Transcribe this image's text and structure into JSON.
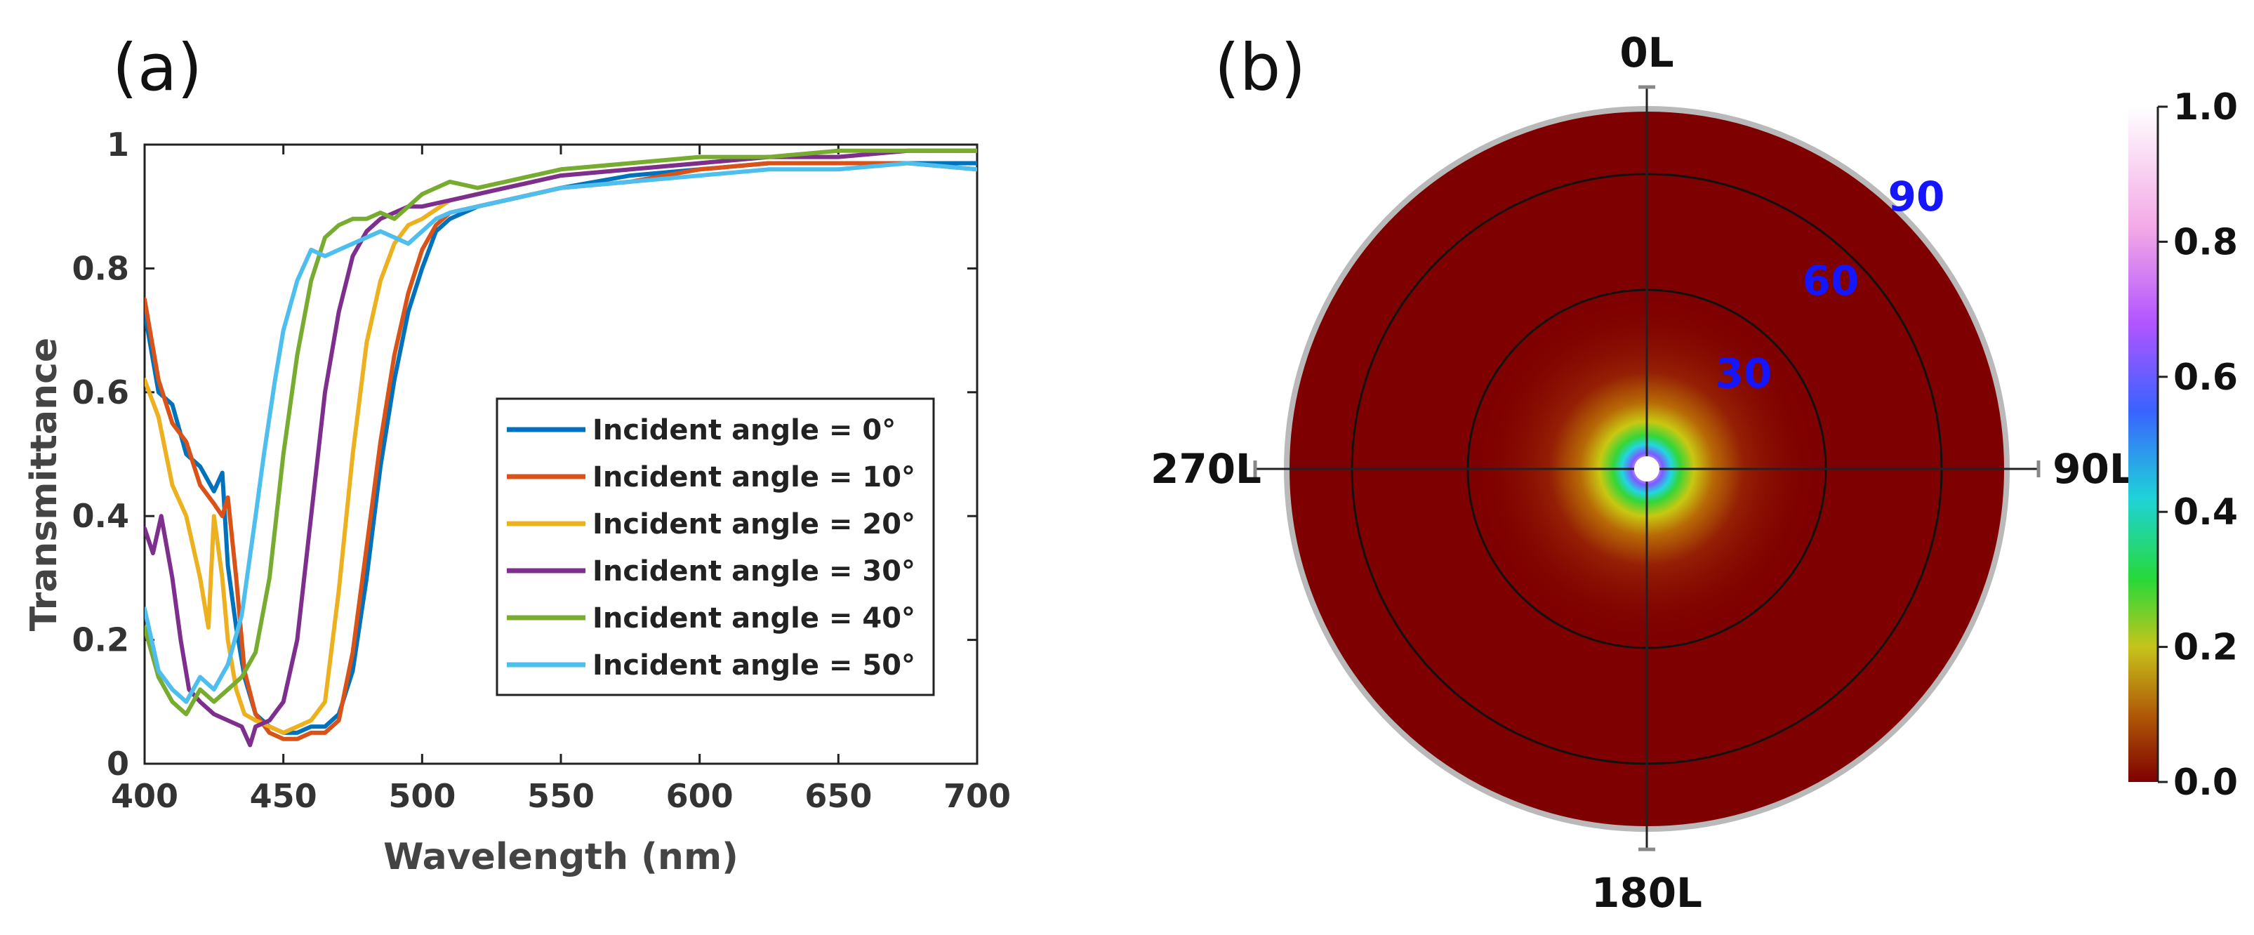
{
  "chart_data": [
    {
      "panel": "(a)",
      "type": "line",
      "xlabel": "Wavelength (nm)",
      "ylabel": "Transmittance",
      "xlim": [
        400,
        700
      ],
      "ylim": [
        0,
        1
      ],
      "xticks": [
        "400",
        "450",
        "500",
        "550",
        "600",
        "650",
        "700"
      ],
      "yticks": [
        "0",
        "0.2",
        "0.4",
        "0.6",
        "0.8",
        "1"
      ],
      "legend_position": "center-right",
      "series": [
        {
          "name": "Incident angle = 0°",
          "color": "#0072BD",
          "x": [
            400,
            405,
            410,
            415,
            420,
            425,
            428,
            430,
            433,
            436,
            440,
            445,
            450,
            455,
            460,
            465,
            470,
            475,
            480,
            485,
            490,
            495,
            500,
            505,
            510,
            520,
            530,
            540,
            550,
            575,
            600,
            625,
            650,
            675,
            700
          ],
          "y": [
            0.73,
            0.6,
            0.58,
            0.5,
            0.48,
            0.44,
            0.47,
            0.32,
            0.22,
            0.14,
            0.08,
            0.06,
            0.05,
            0.05,
            0.06,
            0.06,
            0.08,
            0.15,
            0.3,
            0.48,
            0.62,
            0.73,
            0.8,
            0.86,
            0.88,
            0.9,
            0.91,
            0.92,
            0.93,
            0.95,
            0.96,
            0.97,
            0.97,
            0.97,
            0.97
          ]
        },
        {
          "name": "Incident angle = 10°",
          "color": "#D95319",
          "x": [
            400,
            405,
            410,
            415,
            420,
            425,
            428,
            430,
            433,
            436,
            440,
            445,
            450,
            455,
            460,
            465,
            470,
            475,
            480,
            485,
            490,
            495,
            500,
            505,
            510,
            520,
            530,
            540,
            550,
            575,
            600,
            625,
            650,
            675,
            700
          ],
          "y": [
            0.75,
            0.62,
            0.55,
            0.52,
            0.45,
            0.42,
            0.4,
            0.43,
            0.3,
            0.15,
            0.08,
            0.05,
            0.04,
            0.04,
            0.05,
            0.05,
            0.07,
            0.18,
            0.35,
            0.52,
            0.66,
            0.76,
            0.83,
            0.87,
            0.89,
            0.9,
            0.91,
            0.92,
            0.93,
            0.94,
            0.96,
            0.97,
            0.97,
            0.97,
            0.96
          ]
        },
        {
          "name": "Incident angle = 20°",
          "color": "#EDB120",
          "x": [
            400,
            405,
            410,
            415,
            420,
            423,
            425,
            428,
            430,
            433,
            436,
            440,
            445,
            450,
            455,
            460,
            465,
            470,
            475,
            480,
            485,
            490,
            495,
            500,
            510,
            520,
            530,
            540,
            550,
            575,
            600,
            625,
            650,
            675,
            700
          ],
          "y": [
            0.62,
            0.56,
            0.45,
            0.4,
            0.3,
            0.22,
            0.4,
            0.3,
            0.2,
            0.12,
            0.08,
            0.07,
            0.06,
            0.05,
            0.06,
            0.07,
            0.1,
            0.28,
            0.5,
            0.68,
            0.78,
            0.84,
            0.87,
            0.88,
            0.91,
            0.92,
            0.93,
            0.94,
            0.95,
            0.96,
            0.97,
            0.98,
            0.98,
            0.99,
            0.99
          ]
        },
        {
          "name": "Incident angle = 30°",
          "color": "#7E2F8E",
          "x": [
            400,
            403,
            406,
            410,
            413,
            416,
            420,
            425,
            430,
            435,
            438,
            440,
            445,
            450,
            455,
            460,
            465,
            470,
            475,
            480,
            485,
            490,
            495,
            500,
            510,
            520,
            530,
            540,
            550,
            575,
            600,
            625,
            650,
            675,
            700
          ],
          "y": [
            0.38,
            0.34,
            0.4,
            0.3,
            0.2,
            0.12,
            0.1,
            0.08,
            0.07,
            0.06,
            0.03,
            0.06,
            0.07,
            0.1,
            0.2,
            0.4,
            0.6,
            0.73,
            0.82,
            0.86,
            0.88,
            0.89,
            0.9,
            0.9,
            0.91,
            0.92,
            0.93,
            0.94,
            0.95,
            0.96,
            0.97,
            0.98,
            0.98,
            0.99,
            0.99
          ]
        },
        {
          "name": "Incident angle = 40°",
          "color": "#77AC30",
          "x": [
            400,
            405,
            410,
            415,
            420,
            425,
            430,
            435,
            440,
            445,
            450,
            455,
            460,
            465,
            470,
            475,
            480,
            485,
            490,
            495,
            500,
            505,
            510,
            520,
            530,
            540,
            550,
            575,
            600,
            625,
            650,
            675,
            700
          ],
          "y": [
            0.22,
            0.14,
            0.1,
            0.08,
            0.12,
            0.1,
            0.12,
            0.14,
            0.18,
            0.3,
            0.5,
            0.66,
            0.78,
            0.85,
            0.87,
            0.88,
            0.88,
            0.89,
            0.88,
            0.9,
            0.92,
            0.93,
            0.94,
            0.93,
            0.94,
            0.95,
            0.96,
            0.97,
            0.98,
            0.98,
            0.99,
            0.99,
            0.99
          ]
        },
        {
          "name": "Incident angle = 50°",
          "color": "#4DBEEE",
          "x": [
            400,
            405,
            410,
            415,
            420,
            425,
            430,
            435,
            440,
            443,
            447,
            450,
            455,
            460,
            465,
            470,
            475,
            480,
            485,
            490,
            495,
            500,
            505,
            510,
            520,
            530,
            540,
            550,
            575,
            600,
            625,
            650,
            675,
            700
          ],
          "y": [
            0.25,
            0.15,
            0.12,
            0.1,
            0.14,
            0.12,
            0.16,
            0.24,
            0.4,
            0.5,
            0.62,
            0.7,
            0.78,
            0.83,
            0.82,
            0.83,
            0.84,
            0.85,
            0.86,
            0.85,
            0.84,
            0.86,
            0.88,
            0.89,
            0.9,
            0.91,
            0.92,
            0.93,
            0.94,
            0.95,
            0.96,
            0.96,
            0.97,
            0.96
          ]
        }
      ]
    },
    {
      "panel": "(b)",
      "type": "heatmap",
      "subtype": "polar",
      "directions": {
        "top": "0L",
        "right": "90L",
        "bottom": "180L",
        "left": "270L"
      },
      "ring_labels": [
        "30",
        "60",
        "90"
      ],
      "colorbar": {
        "min": 0.0,
        "max": 1.0,
        "ticks": [
          "0.0",
          "0.2",
          "0.4",
          "0.6",
          "0.8",
          "1.0"
        ]
      },
      "description_values": {
        "center_peak": 1.0,
        "background": 0.0
      }
    }
  ]
}
